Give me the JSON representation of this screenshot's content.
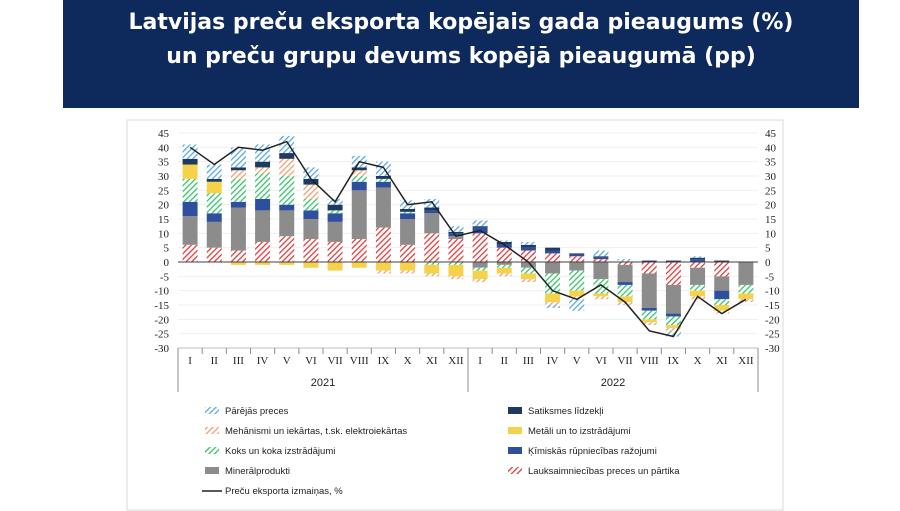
{
  "header": {
    "title_line1": "Latvijas preču eksporta kopējais gada pieaugums (%)",
    "title_line2": "un preču grupu devums kopējā pieaugumā (pp)"
  },
  "chart_data": {
    "type": "bar",
    "stacked": true,
    "categories": [
      "I",
      "II",
      "III",
      "IV",
      "V",
      "VI",
      "VII",
      "VIII",
      "IX",
      "X",
      "XI",
      "XII",
      "I",
      "II",
      "III",
      "IV",
      "V",
      "VI",
      "VII",
      "VIII",
      "IX",
      "X",
      "XI",
      "XII"
    ],
    "years": [
      {
        "label": "2021",
        "start": 0,
        "end": 11
      },
      {
        "label": "2022",
        "start": 12,
        "end": 23
      }
    ],
    "ylim": [
      -30,
      45
    ],
    "yticks": [
      -30,
      -25,
      -20,
      -15,
      -10,
      -5,
      0,
      5,
      10,
      15,
      20,
      25,
      30,
      35,
      40,
      45
    ],
    "series": [
      {
        "name": "Lauksaimniecības preces un pārtika",
        "color": "#e03c3c",
        "pattern": "hatch",
        "values": [
          6,
          5,
          4,
          7,
          9,
          8,
          7,
          8,
          12,
          6,
          10,
          8,
          10,
          5,
          4,
          3,
          2,
          1,
          -1,
          -4,
          -8,
          -2,
          -5,
          0
        ]
      },
      {
        "name": "Minerālprodukti",
        "color": "#8c8c8c",
        "pattern": "solid",
        "values": [
          10,
          9,
          15,
          11,
          9,
          7,
          7,
          17,
          14,
          9,
          7,
          1,
          -2,
          -1,
          -2,
          -4,
          -3,
          -6,
          -6,
          -12,
          -10,
          -6,
          -5,
          -8
        ]
      },
      {
        "name": "Ķīmiskās rūpniecības ražojumi",
        "color": "#2e4e9e",
        "pattern": "solid",
        "values": [
          5,
          3,
          2,
          4,
          2,
          3,
          3,
          3,
          2,
          2,
          1,
          1,
          2,
          1,
          1,
          1,
          0.5,
          0.5,
          -1,
          -1,
          -1,
          1,
          -3,
          0
        ]
      },
      {
        "name": "Koks un koka izstrādājumi",
        "color": "#36c36a",
        "pattern": "hatch",
        "values": [
          8,
          7,
          8,
          9,
          10,
          4,
          1,
          2,
          1,
          0.5,
          -1,
          -1,
          -1,
          -1,
          -2,
          -7,
          -7,
          -5,
          -4,
          -3,
          -3,
          -2,
          -2,
          -3
        ]
      },
      {
        "name": "Metāli un to izstrādājumi",
        "color": "#f5d24a",
        "pattern": "solid",
        "values": [
          5,
          4,
          -1,
          -1,
          -1,
          -2,
          -3,
          -2,
          -3,
          -3,
          -3,
          -4,
          -3,
          -2,
          -2,
          -3,
          -2,
          -1,
          -2,
          -1,
          -1,
          -2,
          -2,
          -2
        ]
      },
      {
        "name": "Mehānismi un iekārtas, t.sk. elektroiekārtas",
        "color": "#f0a070",
        "pattern": "hatch",
        "values": [
          0,
          0,
          3,
          2,
          6,
          5,
          0,
          2,
          -1,
          -1,
          -1,
          -1,
          -1,
          -1,
          -1,
          -1,
          -1,
          -1,
          -1,
          -1,
          -1,
          -1,
          -1,
          -1
        ]
      },
      {
        "name": "Satiksmes līdzekļi",
        "color": "#1f3a60",
        "pattern": "solid",
        "values": [
          2,
          1,
          1,
          2,
          2,
          2,
          2,
          1,
          1,
          1,
          1,
          0.5,
          0.5,
          1,
          1,
          1,
          0.5,
          0.5,
          0,
          0.5,
          0.5,
          0.5,
          0.5,
          0
        ]
      },
      {
        "name": "Pārējās preces",
        "color": "#5aa8e0",
        "pattern": "hatch",
        "values": [
          5,
          5,
          7,
          6,
          6,
          4,
          2,
          4,
          5,
          3,
          3,
          2,
          2,
          0.5,
          1,
          -1,
          -4,
          2,
          1,
          0,
          -2,
          0.5,
          0,
          0
        ]
      }
    ],
    "line": {
      "name": "Preču eksporta izmaiņas, %",
      "color": "#222222",
      "values": [
        40,
        34,
        40,
        39,
        42,
        29,
        21,
        35,
        33,
        20,
        21,
        9,
        11,
        6,
        0,
        -10,
        -13,
        -8,
        -14,
        -24,
        -26,
        -12,
        -18,
        -13
      ]
    },
    "legend_position": "bottom",
    "legend_order": [
      "Pārējās preces",
      "Satiksmes līdzekļi",
      "Mehānismi un iekārtas, t.sk. elektroiekārtas",
      "Metāli un to izstrādājumi",
      "Koks un koka izstrādājumi",
      "Ķīmiskās rūpniecības ražojumi",
      "Minerālprodukti",
      "Lauksaimniecības preces un pārtika",
      "Preču eksporta izmaiņas, %"
    ]
  }
}
